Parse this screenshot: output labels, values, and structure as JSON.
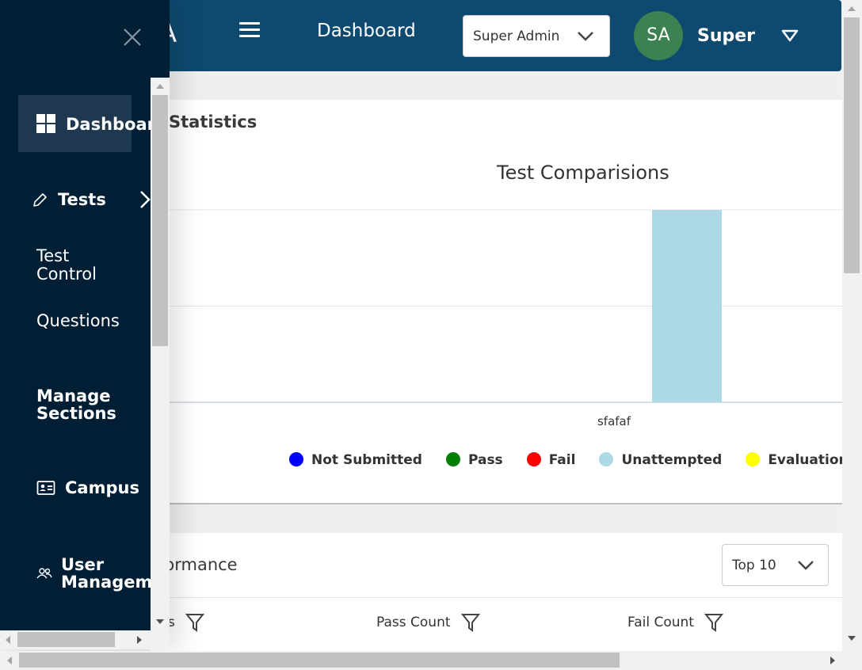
{
  "header": {
    "brand_partial": "A",
    "title": "Dashboard",
    "role_select": "Super Admin",
    "avatar_initials": "SA",
    "user_name": "Super",
    "avatar_color": "#3b8152",
    "bar_color": "#0e4a70"
  },
  "sidebar": {
    "items": [
      {
        "label": "Dashboard",
        "icon": "grid-icon",
        "active": true
      },
      {
        "label": "Tests",
        "icon": "pencil-icon"
      },
      {
        "label": "Test\nControl"
      },
      {
        "label": "Questions"
      },
      {
        "label": "Manage\nSections"
      },
      {
        "label": "Campus",
        "icon": "id-card-icon"
      },
      {
        "label": "User\nManageme",
        "icon": "users-icon"
      }
    ],
    "background": "#001e34"
  },
  "stats": {
    "heading": "Statistics"
  },
  "chart_data": {
    "type": "bar",
    "title": "Test Comparisions",
    "categories": [
      "sfafaf"
    ],
    "series": [
      {
        "name": "Not Submitted",
        "color": "#0000ff",
        "values": [
          0
        ]
      },
      {
        "name": "Pass",
        "color": "#008000",
        "values": [
          0
        ]
      },
      {
        "name": "Fail",
        "color": "#ff0000",
        "values": [
          0
        ]
      },
      {
        "name": "Unattempted",
        "color": "#add8e6",
        "values": [
          1
        ]
      },
      {
        "name": "Evaluation Per",
        "color": "#ffff00",
        "values": [
          0
        ]
      }
    ],
    "ylim": [
      0,
      1
    ],
    "grid": true,
    "legend_position": "bottom"
  },
  "performance": {
    "heading": "formance",
    "top_select": "Top 10",
    "columns": [
      "s",
      "Pass Count",
      "Fail Count"
    ]
  }
}
